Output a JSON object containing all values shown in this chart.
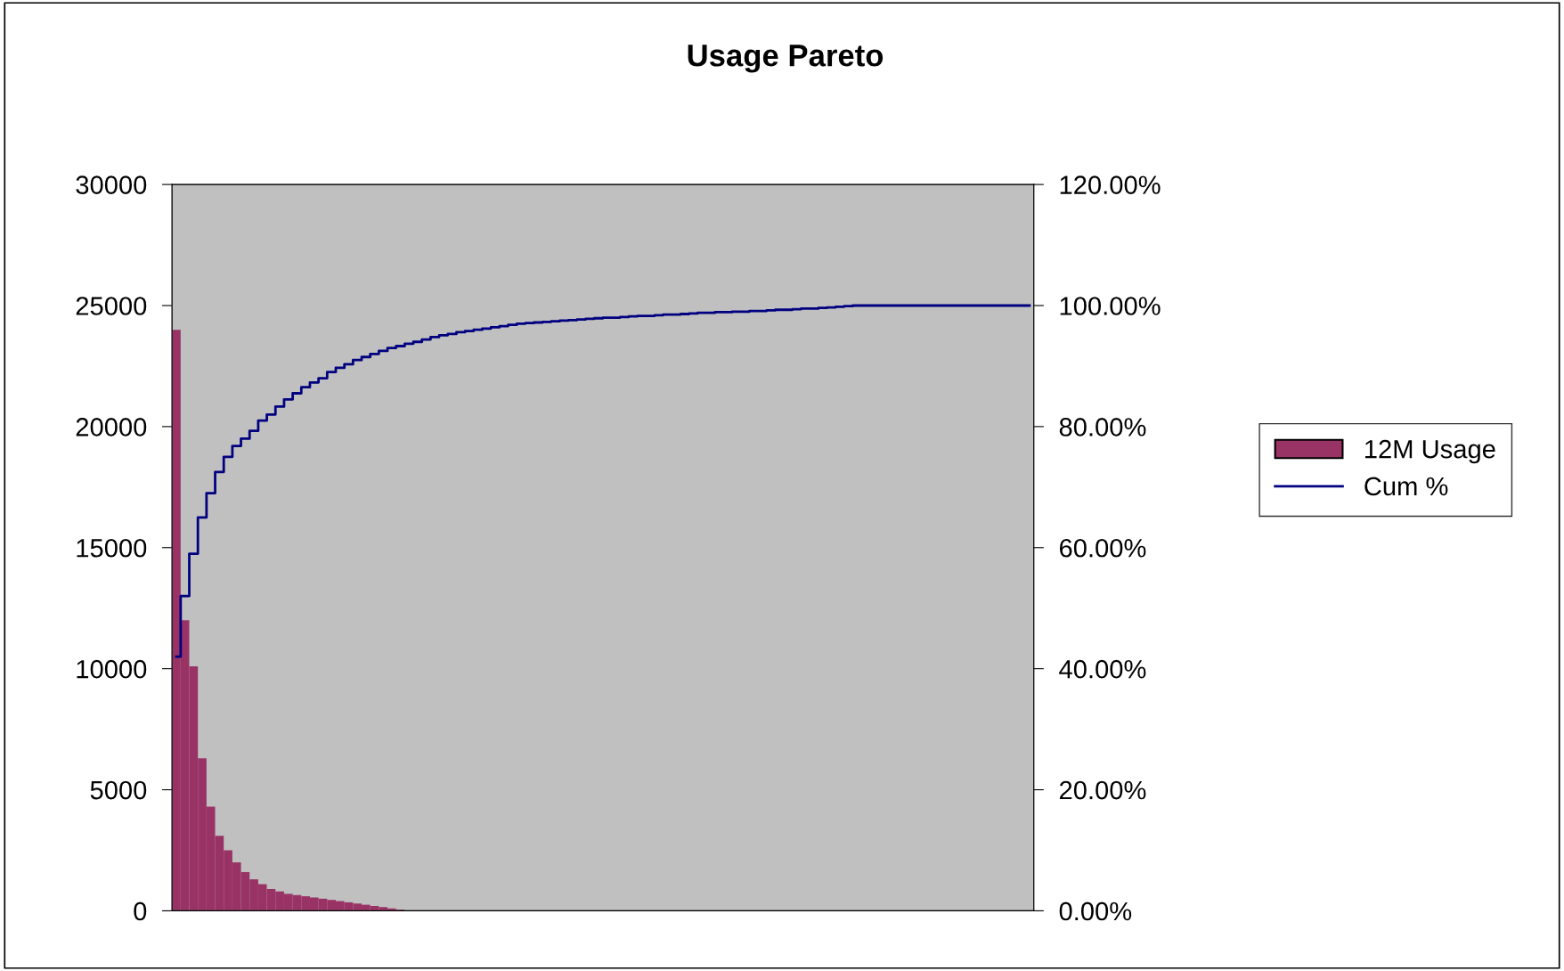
{
  "chart_data": {
    "type": "bar",
    "title": "Usage Pareto",
    "categories": [
      null,
      null,
      null,
      null,
      null,
      null,
      null,
      null,
      null,
      null,
      null,
      null,
      null,
      null,
      null,
      null,
      null,
      null,
      null,
      null,
      null,
      null,
      null,
      null,
      null,
      null,
      null,
      null,
      null,
      null,
      null,
      null,
      null,
      null,
      null,
      null,
      null,
      null,
      null,
      null,
      null,
      null,
      null,
      null,
      null,
      null,
      null,
      null,
      null,
      null,
      null,
      null,
      null,
      null,
      null,
      null,
      null,
      null,
      null,
      null,
      null,
      null,
      null,
      null,
      null,
      null,
      null,
      null,
      null,
      null,
      null,
      null,
      null,
      null,
      null,
      null,
      null,
      null,
      null,
      null,
      null,
      null,
      null,
      null,
      null,
      null,
      null,
      null,
      null,
      null,
      null,
      null,
      null,
      null,
      null,
      null,
      null,
      null,
      null,
      null
    ],
    "series": [
      {
        "name": "12M Usage",
        "color": "#993366",
        "values": [
          24000,
          12000,
          10100,
          6300,
          4300,
          3100,
          2500,
          2000,
          1600,
          1300,
          1100,
          900,
          800,
          700,
          650,
          600,
          550,
          500,
          450,
          400,
          350,
          300,
          250,
          200,
          150,
          100,
          50,
          0,
          0,
          0,
          0,
          0,
          0,
          0,
          0,
          0,
          0,
          0,
          0,
          0,
          0,
          0,
          0,
          0,
          0,
          0,
          0,
          0,
          0,
          0,
          0,
          0,
          0,
          0,
          0,
          0,
          0,
          0,
          0,
          0,
          0,
          0,
          0,
          0,
          0,
          0,
          0,
          0,
          0,
          0,
          0,
          0,
          0,
          0,
          0,
          0,
          0,
          0,
          0,
          0,
          0,
          0,
          0,
          0,
          0,
          0,
          0,
          0,
          0,
          0,
          0,
          0,
          0,
          0,
          0,
          0,
          0,
          0,
          0,
          0
        ]
      },
      {
        "name": "Cum %",
        "type": "step",
        "axis": "y2",
        "color": "#000080",
        "values": [
          42,
          52,
          59,
          65,
          69,
          72.5,
          75,
          76.8,
          78,
          79.3,
          81,
          82,
          83.3,
          84.5,
          85.5,
          86.5,
          87.3,
          88,
          89,
          89.7,
          90.3,
          91,
          91.5,
          92,
          92.5,
          93,
          93.3,
          93.7,
          94,
          94.4,
          94.8,
          95.1,
          95.3,
          95.6,
          95.8,
          96.0,
          96.2,
          96.4,
          96.6,
          96.8,
          97.0,
          97.1,
          97.2,
          97.3,
          97.4,
          97.5,
          97.6,
          97.7,
          97.8,
          97.9,
          98.0,
          98.0,
          98.1,
          98.2,
          98.3,
          98.3,
          98.4,
          98.5,
          98.5,
          98.6,
          98.7,
          98.8,
          98.8,
          98.9,
          98.9,
          99.0,
          99.0,
          99.1,
          99.1,
          99.2,
          99.3,
          99.3,
          99.4,
          99.5,
          99.5,
          99.6,
          99.7,
          99.8,
          99.9,
          100,
          100,
          100,
          100,
          100,
          100,
          100,
          100,
          100,
          100,
          100,
          100,
          100,
          100,
          100,
          100,
          100,
          100,
          100,
          100,
          100
        ]
      }
    ],
    "ylim": [
      0,
      30000
    ],
    "yticks": [
      0,
      5000,
      10000,
      15000,
      20000,
      25000,
      30000
    ],
    "y2lim": [
      0,
      120
    ],
    "y2ticks": [
      {
        "value": 0,
        "label": "0.00%"
      },
      {
        "value": 20,
        "label": "20.00%"
      },
      {
        "value": 40,
        "label": "40.00%"
      },
      {
        "value": 60,
        "label": "60.00%"
      },
      {
        "value": 80,
        "label": "80.00%"
      },
      {
        "value": 100,
        "label": "100.00%"
      },
      {
        "value": 120,
        "label": "120.00%"
      }
    ],
    "legend": "right",
    "grid": false
  }
}
